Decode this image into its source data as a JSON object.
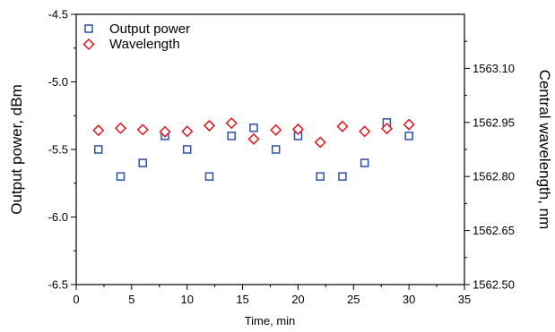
{
  "chart_data": {
    "type": "scatter",
    "xlabel": "Time, min",
    "ylabel": "Output power, dBm",
    "y2label": "Central wavelength, nm",
    "xlim": [
      0,
      35
    ],
    "ylim": [
      -6.5,
      -4.5
    ],
    "y2lim": [
      1562.5,
      1563.25
    ],
    "x_ticks": [
      "0",
      "5",
      "10",
      "15",
      "20",
      "25",
      "30",
      "35"
    ],
    "y_ticks": [
      "-6.5",
      "-6.0",
      "-5.5",
      "-5.0",
      "-4.5"
    ],
    "y2_ticks": [
      "1562.50",
      "1562.65",
      "1562.80",
      "1562.95",
      "1563.10"
    ],
    "grid": false,
    "legend_position": "top-left",
    "colors": {
      "output_power": "#2b4fa8",
      "wavelength": "#e0141c"
    },
    "series": [
      {
        "name": "Output power",
        "axis": "left",
        "marker": "square",
        "x": [
          2,
          4,
          6,
          8,
          10,
          12,
          14,
          16,
          18,
          20,
          22,
          24,
          26,
          28,
          30
        ],
        "y": [
          -5.5,
          -5.7,
          -5.6,
          -5.4,
          -5.5,
          -5.7,
          -5.4,
          -5.34,
          -5.5,
          -5.4,
          -5.7,
          -5.7,
          -5.6,
          -5.3,
          -5.4
        ]
      },
      {
        "name": "Wavelength",
        "axis": "right",
        "marker": "diamond",
        "x": [
          2,
          4,
          6,
          8,
          10,
          12,
          14,
          16,
          18,
          20,
          22,
          24,
          26,
          28,
          30
        ],
        "y": [
          1562.928,
          1562.934,
          1562.93,
          1562.924,
          1562.925,
          1562.941,
          1562.948,
          1562.904,
          1562.929,
          1562.931,
          1562.895,
          1562.939,
          1562.925,
          1562.933,
          1562.944
        ]
      }
    ]
  }
}
